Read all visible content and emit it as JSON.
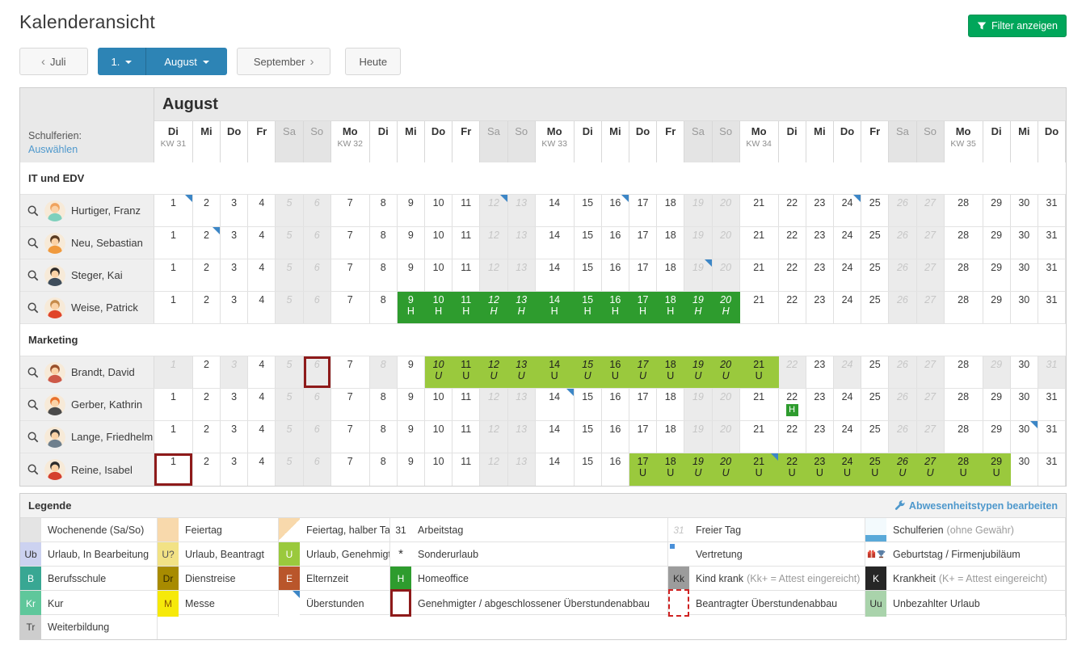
{
  "header": {
    "title": "Kalenderansicht",
    "filter_button": "Filter anzeigen"
  },
  "nav": {
    "prev_chevron": "‹",
    "prev_label": "Juli",
    "day_label": "1.",
    "month_label": "August",
    "next_label": "September",
    "next_chevron": "›",
    "today_label": "Heute"
  },
  "icons": {
    "filter_button": "funnel-icon",
    "legend_edit": "wrench-icon",
    "member_search": "magnifier-icon",
    "birthday": "gift-icon,trophy-icon",
    "overtime_marker": "corner-triangle-icon"
  },
  "calendar": {
    "month_title": "August",
    "schulferien_label": "Schulferien:",
    "schulferien_link": "Auswählen",
    "weekend_days": [
      5,
      6,
      12,
      13,
      19,
      20,
      26,
      27
    ],
    "day_headers": [
      {
        "day": 1,
        "dow": "Di",
        "kw": "KW 31"
      },
      {
        "day": 2,
        "dow": "Mi"
      },
      {
        "day": 3,
        "dow": "Do"
      },
      {
        "day": 4,
        "dow": "Fr"
      },
      {
        "day": 5,
        "dow": "Sa"
      },
      {
        "day": 6,
        "dow": "So"
      },
      {
        "day": 7,
        "dow": "Mo",
        "kw": "KW 32"
      },
      {
        "day": 8,
        "dow": "Di"
      },
      {
        "day": 9,
        "dow": "Mi"
      },
      {
        "day": 10,
        "dow": "Do"
      },
      {
        "day": 11,
        "dow": "Fr"
      },
      {
        "day": 12,
        "dow": "Sa"
      },
      {
        "day": 13,
        "dow": "So"
      },
      {
        "day": 14,
        "dow": "Mo",
        "kw": "KW 33"
      },
      {
        "day": 15,
        "dow": "Di"
      },
      {
        "day": 16,
        "dow": "Mi"
      },
      {
        "day": 17,
        "dow": "Do"
      },
      {
        "day": 18,
        "dow": "Fr"
      },
      {
        "day": 19,
        "dow": "Sa"
      },
      {
        "day": 20,
        "dow": "So"
      },
      {
        "day": 21,
        "dow": "Mo",
        "kw": "KW 34"
      },
      {
        "day": 22,
        "dow": "Di"
      },
      {
        "day": 23,
        "dow": "Mi"
      },
      {
        "day": 24,
        "dow": "Do"
      },
      {
        "day": 25,
        "dow": "Fr"
      },
      {
        "day": 26,
        "dow": "Sa"
      },
      {
        "day": 27,
        "dow": "So"
      },
      {
        "day": 28,
        "dow": "Mo",
        "kw": "KW 35"
      },
      {
        "day": 29,
        "dow": "Di"
      },
      {
        "day": 30,
        "dow": "Mi"
      },
      {
        "day": 31,
        "dow": "Do"
      }
    ],
    "groups": [
      {
        "name": "IT und EDV",
        "members": [
          {
            "name": "Hurtiger, Franz",
            "triangles": [
              1,
              12,
              16,
              24
            ],
            "avatar": {
              "hair": "#f0a35e",
              "shirt": "#7ed0bd"
            }
          },
          {
            "name": "Neu, Sebastian",
            "triangles": [
              2
            ],
            "avatar": {
              "hair": "#5a3b22",
              "shirt": "#f09a3e"
            }
          },
          {
            "name": "Steger, Kai",
            "triangles": [
              19
            ],
            "avatar": {
              "hair": "#2e2a28",
              "shirt": "#3e4d5c"
            }
          },
          {
            "name": "Weise, Patrick",
            "bands": [
              {
                "from": 9,
                "to": 20,
                "letter": "H",
                "type": "homeoffice"
              }
            ],
            "avatar": {
              "hair": "#c58a4a",
              "shirt": "#e0452a"
            }
          }
        ]
      },
      {
        "name": "Marketing",
        "members": [
          {
            "name": "Brandt, David",
            "free_days": [
              1,
              3,
              8,
              10,
              15,
              17,
              22,
              24,
              29,
              31
            ],
            "overtime_approved": [
              6
            ],
            "bands": [
              {
                "from": 10,
                "to": 21,
                "letter": "U",
                "type": "vacation"
              }
            ],
            "avatar": {
              "hair": "#9a4f2a",
              "shirt": "#cd5948"
            }
          },
          {
            "name": "Gerber, Kathrin",
            "triangles": [
              14
            ],
            "badges": [
              {
                "day": 22,
                "letter": "H",
                "type": "homeoffice"
              }
            ],
            "avatar": {
              "hair": "#e8702b",
              "shirt": "#4a4a4a"
            }
          },
          {
            "name": "Lange, Friedhelm",
            "triangles": [
              30
            ],
            "avatar": {
              "hair": "#3a3a3a",
              "shirt": "#6e7f8d"
            }
          },
          {
            "name": "Reine, Isabel",
            "overtime_approved": [
              1
            ],
            "triangles": [
              21
            ],
            "bands": [
              {
                "from": 17,
                "to": 29,
                "letter": "U",
                "type": "vacation"
              }
            ],
            "avatar": {
              "hair": "#2b2b2b",
              "shirt": "#d5402e"
            }
          }
        ]
      }
    ]
  },
  "legend": {
    "title": "Legende",
    "edit_link": "Abwesenheitstypen bearbeiten",
    "rows": [
      [
        {
          "type": "weekend",
          "label": "Wochenende (Sa/So)"
        },
        {
          "type": "holiday",
          "label": "Feiertag"
        },
        {
          "type": "holiday-half",
          "label": "Feiertag, halber Tag"
        },
        {
          "type": "workday",
          "text": "31",
          "label": "Arbeitstag"
        },
        {
          "type": "freeday",
          "text": "31",
          "label": "Freier Tag"
        },
        {
          "type": "school",
          "label": "Schulferien",
          "note": "(ohne Gewähr)"
        }
      ],
      [
        {
          "type": "ub",
          "text": "Ub",
          "label": "Urlaub, In Bearbeitung"
        },
        {
          "type": "uq",
          "text": "U?",
          "label": "Urlaub, Beantragt"
        },
        {
          "type": "u",
          "text": "U",
          "label": "Urlaub, Genehmigt"
        },
        {
          "type": "star",
          "text": "*",
          "label": "Sonderurlaub"
        },
        {
          "type": "vertretung",
          "label": "Vertretung"
        },
        {
          "type": "birthday",
          "label": "Geburtstag / Firmenjubiläum"
        }
      ],
      [
        {
          "type": "b",
          "text": "B",
          "label": "Berufsschule"
        },
        {
          "type": "dr",
          "text": "Dr",
          "label": "Dienstreise"
        },
        {
          "type": "e",
          "text": "E",
          "label": "Elternzeit"
        },
        {
          "type": "h",
          "text": "H",
          "label": "Homeoffice"
        },
        {
          "type": "kk",
          "text": "Kk",
          "label": "Kind krank",
          "note": "(Kk+ = Attest eingereicht)"
        },
        {
          "type": "k",
          "text": "K",
          "label": "Krankheit",
          "note": "(K+ = Attest eingereicht)"
        }
      ],
      [
        {
          "type": "kr",
          "text": "Kr",
          "label": "Kur"
        },
        {
          "type": "m",
          "text": "M",
          "label": "Messe"
        },
        {
          "type": "overtime",
          "label": "Überstunden"
        },
        {
          "type": "red-solid",
          "label": "Genehmigter / abgeschlossener Überstundenabbau"
        },
        {
          "type": "red-dashed",
          "label": "Beantragter Überstundenabbau"
        },
        {
          "type": "uu",
          "text": "Uu",
          "label": "Unbezahlter Urlaub"
        }
      ],
      [
        {
          "type": "tr",
          "text": "Tr",
          "label": "Weiterbildung"
        }
      ]
    ]
  },
  "colors": {
    "accent_blue": "#2d84b5",
    "green_button": "#00a65a",
    "link_blue": "#4e98cc",
    "homeoffice_green": "#2e9c2e",
    "vacation_green": "#9ac93d",
    "marker_blue": "#3c86c6",
    "overtime_red": "#8e1a1a",
    "overtime_red_dashed": "#cf2222",
    "weekend_gray": "#ebebeb"
  }
}
